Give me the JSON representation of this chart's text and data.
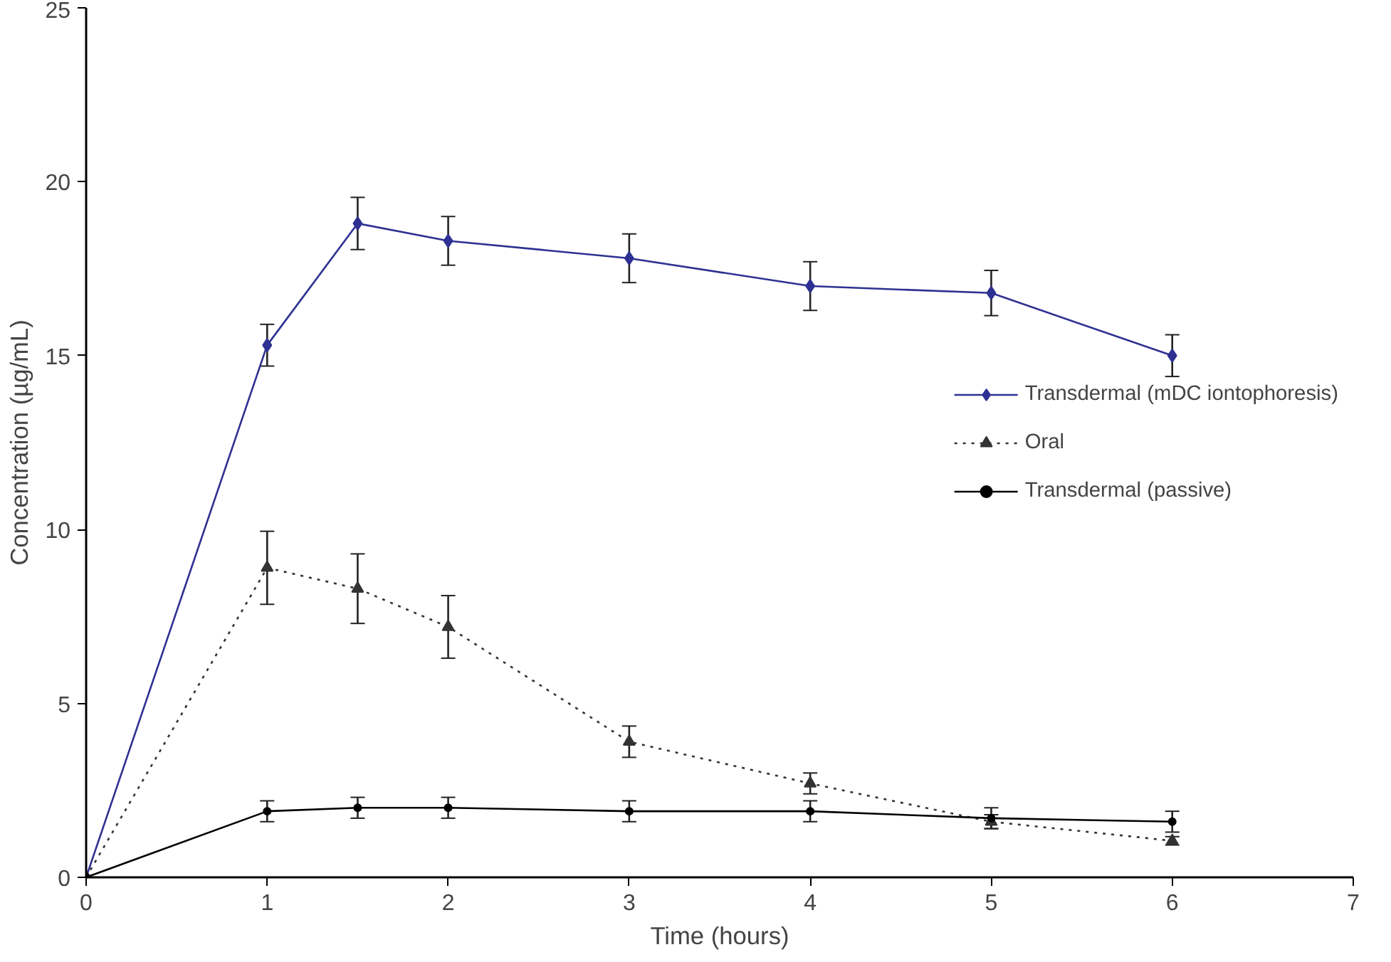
{
  "chart_data": {
    "type": "line",
    "xlabel": "Time (hours)",
    "ylabel": "Concentration (µg/mL)",
    "x": [
      0,
      1,
      1.5,
      2,
      3,
      4,
      5,
      6
    ],
    "xlim": [
      0,
      7
    ],
    "xticks": [
      0,
      1,
      2,
      3,
      4,
      5,
      6,
      7
    ],
    "ylim": [
      0,
      25
    ],
    "yticks": [
      0,
      5,
      10,
      15,
      20,
      25
    ],
    "grid": false,
    "legend": "right",
    "series": [
      {
        "name": "Transdermal (mDC iontophoresis)",
        "color": "#2e3192",
        "marker": "diamond",
        "line_style": "solid",
        "values": [
          0,
          15.3,
          18.8,
          18.3,
          17.8,
          17.0,
          16.8,
          15.0
        ],
        "errors": [
          null,
          0.6,
          0.75,
          0.7,
          0.7,
          0.7,
          0.65,
          0.6
        ]
      },
      {
        "name": "Oral",
        "color": "#333333",
        "marker": "triangle",
        "line_style": "dotted",
        "values": [
          0,
          8.9,
          8.3,
          7.2,
          3.9,
          2.7,
          1.6,
          1.05
        ],
        "errors": [
          null,
          1.05,
          1.0,
          0.9,
          0.45,
          0.3,
          0.2,
          0.12
        ]
      },
      {
        "name": "Transdermal (passive)",
        "color": "#000000",
        "marker": "circle",
        "line_style": "solid",
        "values": [
          0,
          1.9,
          2.0,
          2.0,
          1.9,
          1.9,
          1.7,
          1.6
        ],
        "errors": [
          null,
          0.3,
          0.3,
          0.3,
          0.3,
          0.3,
          0.3,
          0.3
        ]
      }
    ]
  }
}
